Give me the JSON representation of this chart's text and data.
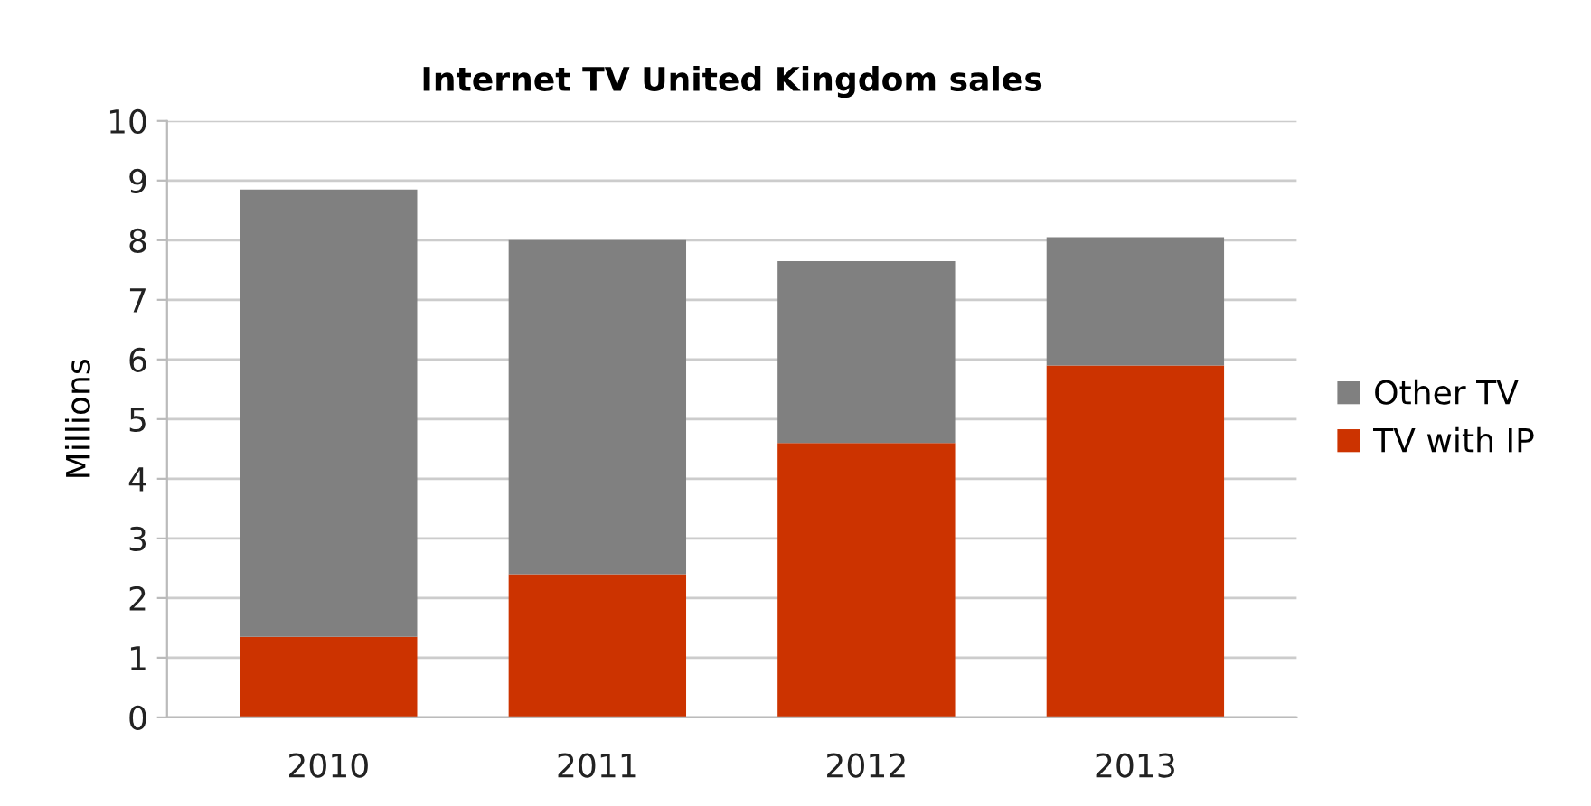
{
  "chart_data": {
    "type": "bar",
    "title": "Internet TV United Kingdom sales",
    "ylabel": "Millions",
    "categories": [
      "2010",
      "2011",
      "2012",
      "2013"
    ],
    "series": [
      {
        "name": "TV with IP",
        "color": "#cc3300",
        "values": [
          1.35,
          2.4,
          4.6,
          5.9
        ]
      },
      {
        "name": "Other TV",
        "color": "#808080",
        "values": [
          7.5,
          5.6,
          3.05,
          2.15
        ]
      }
    ],
    "stacked": true,
    "ylim": [
      0,
      10
    ],
    "yticks": [
      0,
      1,
      2,
      3,
      4,
      5,
      6,
      7,
      8,
      9,
      10
    ],
    "grid": "y",
    "legend": "right"
  }
}
